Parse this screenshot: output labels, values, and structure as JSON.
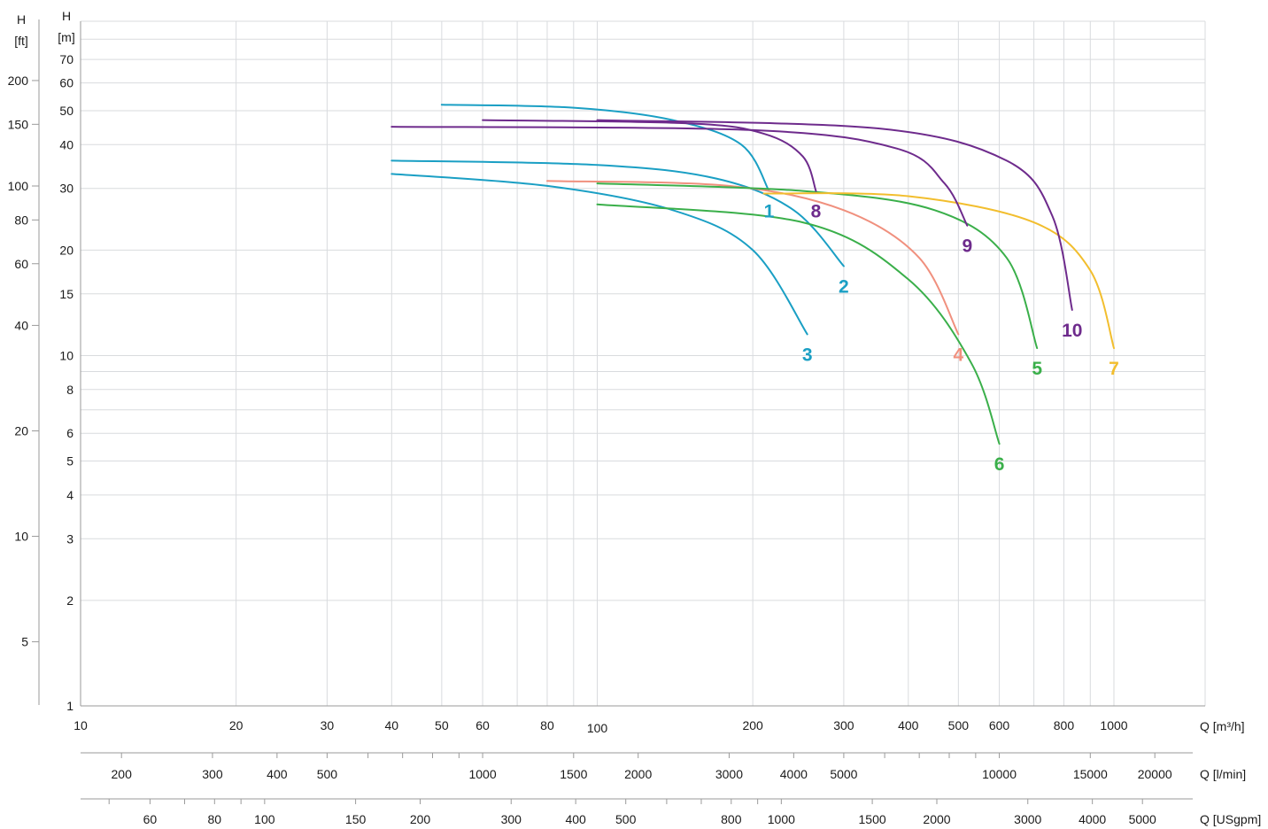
{
  "chart_data": {
    "type": "line",
    "axis_titles": {
      "h_ft_title": "H",
      "h_ft_unit": "[ft]",
      "h_m_title": "H",
      "h_m_unit": "[m]",
      "q_m3h_unit": "Q [m³/h]",
      "q_lmin_unit": "Q [l/min]",
      "q_usgpm_unit": "Q [USgpm]"
    },
    "x_scale": "log",
    "y_scale": "log",
    "xlim_m3h": [
      10,
      1000
    ],
    "ylim_m": [
      1,
      90
    ],
    "y_m_ticks": [
      1,
      2,
      3,
      4,
      5,
      6,
      8,
      10,
      15,
      20,
      30,
      40,
      50,
      60,
      70
    ],
    "y_m_tick_labels": [
      "1",
      "2",
      "3",
      "4",
      "5",
      "6",
      "8",
      "10",
      "15",
      "20",
      "30",
      "40",
      "50",
      "60",
      "70"
    ],
    "y_ft_ticks": [
      5,
      10,
      20,
      40,
      60,
      80,
      100,
      150,
      200
    ],
    "y_ft_tick_labels": [
      "5",
      "10",
      "20",
      "40",
      "60",
      "80",
      "100",
      "150",
      "200"
    ],
    "x_m3h_ticks": [
      10,
      20,
      30,
      40,
      50,
      60,
      80,
      100,
      200,
      300,
      400,
      500,
      600,
      800,
      1000
    ],
    "x_m3h_tick_labels": [
      "10",
      "20",
      "30",
      "40",
      "50",
      "60",
      "80",
      "100",
      "200",
      "300",
      "400",
      "500",
      "600",
      "800",
      "1000"
    ],
    "x_lmin_ticks": [
      200,
      300,
      400,
      500,
      1000,
      1500,
      2000,
      3000,
      4000,
      5000,
      10000,
      15000,
      20000
    ],
    "x_lmin_tick_labels": [
      "200",
      "300",
      "400",
      "500",
      "1000",
      "1500",
      "2000",
      "3000",
      "4000",
      "5000",
      "10000",
      "15000",
      "20000"
    ],
    "x_usgpm_ticks": [
      60,
      80,
      100,
      150,
      200,
      300,
      400,
      500,
      800,
      1000,
      1500,
      2000,
      3000,
      4000,
      5000
    ],
    "x_usgpm_tick_labels": [
      "60",
      "80",
      "100",
      "150",
      "200",
      "300",
      "400",
      "500",
      "800",
      "1000",
      "1500",
      "2000",
      "3000",
      "4000",
      "5000"
    ],
    "grid": true,
    "series": [
      {
        "name": "1",
        "color": "#1a9fc4",
        "x": [
          50,
          90,
          140,
          190,
          215
        ],
        "y": [
          52,
          51,
          47,
          40,
          29.5
        ]
      },
      {
        "name": "2",
        "color": "#1a9fc4",
        "x": [
          40,
          100,
          170,
          240,
          300
        ],
        "y": [
          36,
          35,
          32,
          26,
          18
        ]
      },
      {
        "name": "3",
        "color": "#1a9fc4",
        "x": [
          40,
          80,
          140,
          200,
          255
        ],
        "y": [
          33,
          30.5,
          26,
          20,
          11.5
        ]
      },
      {
        "name": "4",
        "color": "#f0907e",
        "x": [
          80,
          180,
          300,
          420,
          500
        ],
        "y": [
          31.5,
          30.5,
          26,
          19,
          11.5
        ]
      },
      {
        "name": "5",
        "color": "#3aaf4a",
        "x": [
          100,
          250,
          450,
          620,
          710
        ],
        "y": [
          31,
          29.5,
          26,
          19,
          10.5
        ]
      },
      {
        "name": "6",
        "color": "#3aaf4a",
        "x": [
          100,
          250,
          400,
          530,
          600
        ],
        "y": [
          27,
          24,
          16.5,
          9.5,
          5.6
        ]
      },
      {
        "name": "7",
        "color": "#f2be2e",
        "x": [
          210,
          400,
          700,
          900,
          1000
        ],
        "y": [
          29,
          28.5,
          24,
          17.5,
          10.5
        ]
      },
      {
        "name": "8",
        "color": "#6e2b8c",
        "x": [
          60,
          150,
          210,
          250,
          265
        ],
        "y": [
          47,
          46,
          43,
          37,
          29.5
        ]
      },
      {
        "name": "9",
        "color": "#6e2b8c",
        "x": [
          40,
          200,
          380,
          470,
          520
        ],
        "y": [
          45,
          44,
          39,
          31,
          23.5
        ]
      },
      {
        "name": "10",
        "color": "#6e2b8c",
        "x": [
          100,
          350,
          620,
          760,
          830
        ],
        "y": [
          47,
          44.5,
          36,
          25,
          13.5
        ]
      }
    ]
  }
}
